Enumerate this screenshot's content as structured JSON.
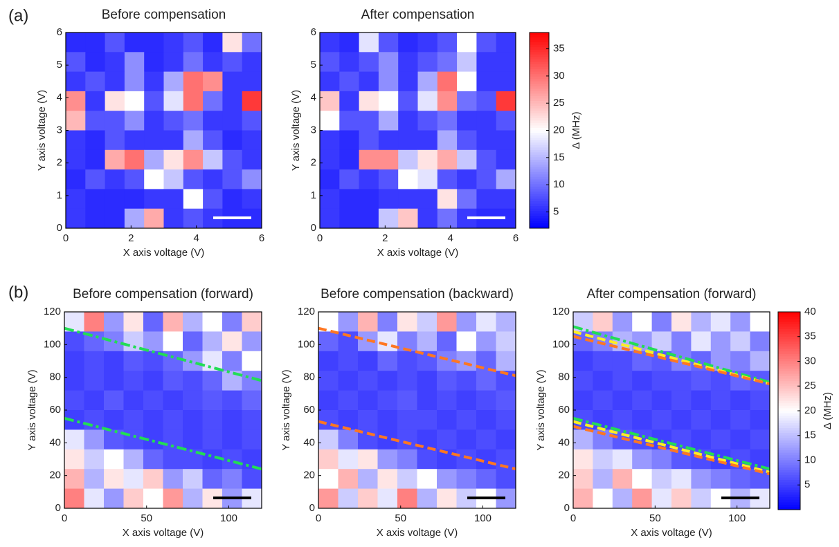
{
  "panel_labels": [
    "(a)",
    "(b)"
  ],
  "chart_data": [
    {
      "type": "heatmap",
      "title": "Before compensation",
      "x_label": "X axis voltage (V)",
      "y_label": "Y axis voltage (V)",
      "xlim": [
        0,
        6
      ],
      "ylim": [
        0,
        6
      ],
      "xticks": [
        0,
        2,
        4,
        6
      ],
      "yticks": [
        0,
        1,
        2,
        3,
        4,
        5,
        6
      ],
      "scale_bar_color": "#ffffff",
      "z": [
        [
          5,
          5,
          8,
          5,
          5,
          6,
          8,
          5,
          22,
          10
        ],
        [
          8,
          5,
          6,
          12,
          5,
          6,
          10,
          6,
          8,
          6
        ],
        [
          6,
          8,
          6,
          12,
          6,
          14,
          30,
          28,
          6,
          6
        ],
        [
          28,
          6,
          22,
          20,
          8,
          18,
          30,
          10,
          6,
          34
        ],
        [
          25,
          8,
          8,
          12,
          6,
          8,
          10,
          6,
          6,
          8
        ],
        [
          6,
          5,
          8,
          6,
          6,
          6,
          14,
          8,
          5,
          6
        ],
        [
          6,
          5,
          26,
          30,
          14,
          22,
          28,
          16,
          8,
          6
        ],
        [
          5,
          8,
          6,
          8,
          20,
          16,
          8,
          6,
          8,
          12
        ],
        [
          6,
          5,
          5,
          5,
          6,
          6,
          20,
          8,
          5,
          6
        ],
        [
          6,
          5,
          5,
          14,
          26,
          6,
          8,
          6,
          5,
          5
        ]
      ]
    },
    {
      "type": "heatmap",
      "title": "After compensation",
      "x_label": "X axis voltage (V)",
      "y_label": "Y axis voltage (V)",
      "xlim": [
        0,
        6
      ],
      "ylim": [
        0,
        6
      ],
      "xticks": [
        0,
        2,
        4,
        6
      ],
      "yticks": [
        0,
        1,
        2,
        3,
        4,
        5,
        6
      ],
      "scale_bar_color": "#ffffff",
      "z": [
        [
          6,
          5,
          18,
          8,
          5,
          6,
          8,
          20,
          8,
          6
        ],
        [
          8,
          6,
          8,
          12,
          6,
          8,
          10,
          16,
          6,
          6
        ],
        [
          6,
          8,
          6,
          12,
          6,
          14,
          30,
          20,
          6,
          6
        ],
        [
          24,
          6,
          22,
          20,
          8,
          18,
          28,
          10,
          8,
          34
        ],
        [
          20,
          8,
          8,
          14,
          6,
          8,
          10,
          6,
          6,
          8
        ],
        [
          6,
          5,
          8,
          6,
          6,
          6,
          14,
          8,
          6,
          6
        ],
        [
          6,
          5,
          28,
          28,
          16,
          22,
          26,
          16,
          8,
          6
        ],
        [
          5,
          8,
          6,
          8,
          20,
          18,
          8,
          6,
          8,
          14
        ],
        [
          6,
          5,
          5,
          6,
          6,
          6,
          22,
          10,
          6,
          6
        ],
        [
          6,
          5,
          5,
          16,
          24,
          6,
          10,
          6,
          5,
          5
        ]
      ],
      "colorbar": {
        "label": "Δ (MHz)",
        "lim": [
          2,
          38
        ],
        "ticks": [
          5,
          10,
          15,
          20,
          25,
          30,
          35
        ],
        "colors": [
          "#0000ff",
          "#ffffff",
          "#ff0000"
        ]
      }
    },
    {
      "type": "heatmap",
      "title": "Before compensation (forward)",
      "x_label": "X axis voltage (V)",
      "y_label": "Y axis voltage (V)",
      "xlim": [
        0,
        120
      ],
      "ylim": [
        0,
        120
      ],
      "xticks": [
        0,
        50,
        100
      ],
      "yticks": [
        0,
        20,
        40,
        60,
        80,
        100,
        120
      ],
      "scale_bar_color": "#000000",
      "z": [
        [
          18,
          30,
          12,
          22,
          8,
          26,
          14,
          20,
          10,
          24
        ],
        [
          6,
          8,
          10,
          16,
          12,
          20,
          8,
          14,
          22,
          12
        ],
        [
          5,
          6,
          5,
          7,
          6,
          8,
          12,
          18,
          10,
          20
        ],
        [
          5,
          6,
          5,
          6,
          5,
          7,
          6,
          8,
          14,
          10
        ],
        [
          6,
          5,
          7,
          5,
          6,
          5,
          6,
          7,
          6,
          8
        ],
        [
          5,
          6,
          5,
          6,
          5,
          6,
          5,
          6,
          5,
          6
        ],
        [
          18,
          12,
          7,
          6,
          5,
          6,
          5,
          6,
          5,
          6
        ],
        [
          22,
          16,
          20,
          14,
          8,
          6,
          6,
          5,
          6,
          5
        ],
        [
          26,
          14,
          22,
          18,
          24,
          12,
          16,
          8,
          10,
          6
        ],
        [
          30,
          18,
          12,
          24,
          20,
          28,
          14,
          22,
          12,
          18
        ]
      ],
      "lines": [
        {
          "color": "#22dd55",
          "style": "dashdot",
          "x": [
            0,
            120
          ],
          "y": [
            110,
            78
          ]
        },
        {
          "color": "#22dd55",
          "style": "dashdot",
          "x": [
            0,
            120
          ],
          "y": [
            55,
            24
          ]
        }
      ]
    },
    {
      "type": "heatmap",
      "title": "Before compensation (backward)",
      "x_label": "X axis voltage (V)",
      "y_label": "Y axis voltage (V)",
      "xlim": [
        0,
        120
      ],
      "ylim": [
        0,
        120
      ],
      "xticks": [
        0,
        50,
        100
      ],
      "yticks": [
        0,
        20,
        40,
        60,
        80,
        100,
        120
      ],
      "scale_bar_color": "#000000",
      "z": [
        [
          20,
          12,
          26,
          10,
          22,
          16,
          28,
          12,
          18,
          14
        ],
        [
          8,
          6,
          12,
          18,
          10,
          14,
          8,
          20,
          12,
          16
        ],
        [
          5,
          6,
          5,
          8,
          6,
          7,
          10,
          12,
          8,
          14
        ],
        [
          6,
          5,
          6,
          5,
          6,
          5,
          7,
          6,
          8,
          6
        ],
        [
          5,
          6,
          5,
          6,
          7,
          5,
          6,
          5,
          6,
          7
        ],
        [
          6,
          5,
          6,
          5,
          6,
          6,
          5,
          6,
          5,
          6
        ],
        [
          16,
          10,
          6,
          5,
          6,
          5,
          6,
          5,
          6,
          5
        ],
        [
          24,
          18,
          22,
          12,
          10,
          6,
          5,
          6,
          5,
          6
        ],
        [
          20,
          26,
          14,
          22,
          16,
          20,
          12,
          10,
          8,
          6
        ],
        [
          28,
          16,
          24,
          18,
          30,
          14,
          22,
          16,
          20,
          12
        ]
      ],
      "lines": [
        {
          "color": "#ff7722",
          "style": "dashed",
          "x": [
            0,
            120
          ],
          "y": [
            110,
            81
          ]
        },
        {
          "color": "#ff7722",
          "style": "dashed",
          "x": [
            0,
            120
          ],
          "y": [
            53,
            24
          ]
        }
      ]
    },
    {
      "type": "heatmap",
      "title": "After compensation (forward)",
      "x_label": "X axis voltage (V)",
      "y_label": "Y axis voltage (V)",
      "xlim": [
        0,
        120
      ],
      "ylim": [
        0,
        120
      ],
      "xticks": [
        0,
        50,
        100
      ],
      "yticks": [
        0,
        20,
        40,
        60,
        80,
        100,
        120
      ],
      "scale_bar_color": "#000000",
      "z": [
        [
          16,
          24,
          12,
          20,
          10,
          22,
          14,
          18,
          12,
          20
        ],
        [
          8,
          10,
          14,
          12,
          16,
          10,
          18,
          12,
          16,
          10
        ],
        [
          5,
          6,
          6,
          8,
          7,
          10,
          8,
          12,
          10,
          14
        ],
        [
          6,
          5,
          6,
          5,
          6,
          6,
          7,
          6,
          8,
          7
        ],
        [
          5,
          6,
          5,
          6,
          5,
          6,
          5,
          6,
          5,
          6
        ],
        [
          6,
          5,
          6,
          5,
          6,
          5,
          6,
          5,
          6,
          5
        ],
        [
          14,
          10,
          7,
          6,
          5,
          6,
          5,
          6,
          5,
          6
        ],
        [
          22,
          16,
          18,
          12,
          10,
          7,
          6,
          5,
          6,
          5
        ],
        [
          24,
          14,
          26,
          20,
          16,
          18,
          12,
          10,
          8,
          7
        ],
        [
          26,
          20,
          14,
          28,
          18,
          24,
          16,
          20,
          14,
          18
        ]
      ],
      "lines": [
        {
          "color": "#22dd55",
          "style": "dashdot",
          "x": [
            0,
            120
          ],
          "y": [
            111,
            77
          ]
        },
        {
          "color": "#22dd55",
          "style": "dashdot",
          "x": [
            0,
            120
          ],
          "y": [
            55,
            24
          ]
        },
        {
          "color": "#ffee22",
          "style": "dashed",
          "x": [
            0,
            120
          ],
          "y": [
            108,
            76
          ]
        },
        {
          "color": "#ffee22",
          "style": "dashed",
          "x": [
            0,
            120
          ],
          "y": [
            53,
            22
          ]
        },
        {
          "color": "#ff7722",
          "style": "dashed",
          "x": [
            0,
            120
          ],
          "y": [
            105,
            76
          ]
        },
        {
          "color": "#ff7722",
          "style": "dashed",
          "x": [
            0,
            120
          ],
          "y": [
            50,
            21
          ]
        }
      ],
      "colorbar": {
        "label": "Δ (MHz)",
        "lim": [
          0,
          40
        ],
        "ticks": [
          5,
          10,
          15,
          20,
          25,
          30,
          35,
          40
        ],
        "colors": [
          "#0000ff",
          "#ffffff",
          "#ff0000"
        ]
      }
    }
  ]
}
